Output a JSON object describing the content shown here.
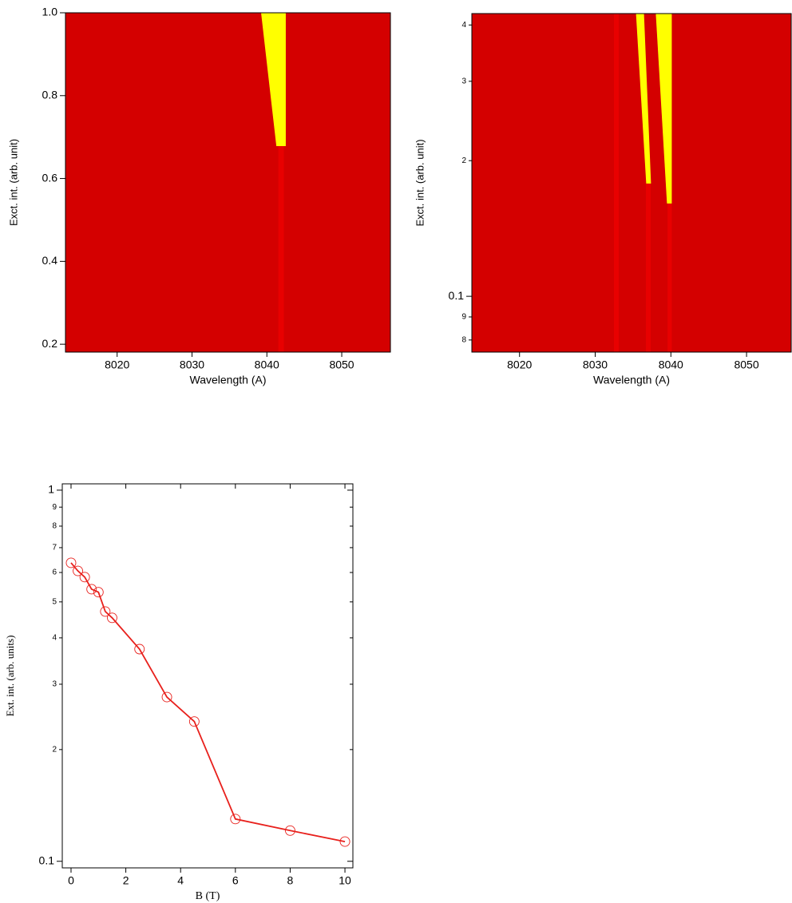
{
  "chart_data": [
    {
      "type": "heatmap",
      "xlabel": "Wavelength (A)",
      "ylabel": "Exct. int. (arb. unit)",
      "xlim": [
        8013.1,
        8056.5
      ],
      "ylim": [
        0.181,
        1.0
      ],
      "xticks": [
        8020,
        8030,
        8040,
        8050
      ],
      "yticks": [
        0.2,
        0.4,
        0.6,
        0.8,
        {
          "value": 1,
          "label": "1.0"
        }
      ],
      "log_y": false,
      "colormap": [
        "#d40000",
        "#ffff00"
      ]
    },
    {
      "type": "heatmap",
      "xlabel": "Wavelength (A)",
      "ylabel": "Exct. int. (arb. unit)",
      "xlim": [
        8013.7,
        8055.9
      ],
      "ylim": [
        0.0752,
        0.424
      ],
      "xticks": [
        8020,
        8030,
        8040,
        8050
      ],
      "yticks": [
        {
          "value": 0.08,
          "label": "8"
        },
        {
          "value": 0.09,
          "label": "9"
        },
        0.1,
        {
          "value": 0.2,
          "label": "2"
        },
        {
          "value": 0.3,
          "label": "3"
        },
        {
          "value": 0.4,
          "label": "4"
        }
      ],
      "log_y": true,
      "colormap": [
        "#d40000",
        "#ffff00"
      ]
    },
    {
      "type": "line",
      "xlabel": "B (T)",
      "ylabel": "Ext. int. (arb. units)",
      "xlim": [
        -0.32,
        10.29
      ],
      "ylim": [
        0.096,
        1.04
      ],
      "xticks": [
        0,
        2,
        4,
        6,
        8,
        10
      ],
      "yticks": [
        0.1,
        {
          "value": 0.2,
          "label": "2"
        },
        {
          "value": 0.3,
          "label": "3"
        },
        {
          "value": 0.4,
          "label": "4"
        },
        {
          "value": 0.5,
          "label": "5"
        },
        {
          "value": 0.6,
          "label": "6"
        },
        {
          "value": 0.7,
          "label": "7"
        },
        {
          "value": 0.8,
          "label": "8"
        },
        {
          "value": 0.9,
          "label": "9"
        },
        1
      ],
      "log_y": true,
      "color": "#e8201c",
      "x": [
        0,
        0.25,
        0.5,
        0.75,
        1,
        1.25,
        1.5,
        2.5,
        3.5,
        4.5,
        6,
        8,
        10
      ],
      "values": [
        0.637,
        0.606,
        0.583,
        0.541,
        0.531,
        0.471,
        0.453,
        0.373,
        0.277,
        0.238,
        0.13,
        0.121,
        0.113
      ]
    }
  ]
}
